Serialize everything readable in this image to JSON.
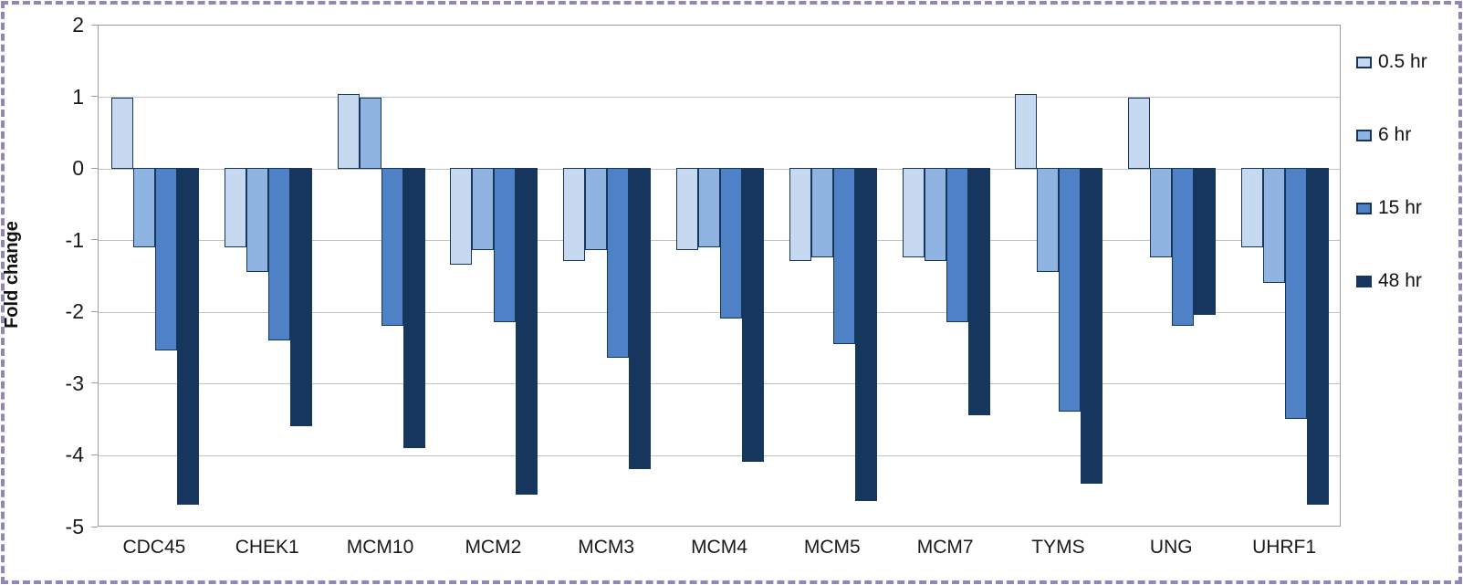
{
  "chart_data": {
    "type": "bar",
    "title": "",
    "xlabel": "",
    "ylabel": "Fold change",
    "ylim": [
      -5,
      2
    ],
    "ytick_labels": [
      "2",
      "1",
      "0",
      "-1",
      "-2",
      "-3",
      "-4",
      "-5"
    ],
    "grid": "horizontal",
    "legend_position": "right",
    "categories": [
      "CDC45",
      "CHEK1",
      "MCM10",
      "MCM2",
      "MCM3",
      "MCM4",
      "MCM5",
      "MCM7",
      "TYMS",
      "UNG",
      "UHRF1"
    ],
    "series": [
      {
        "name": "0.5 hr",
        "color": "#c6d9f1",
        "values": [
          1.0,
          -1.1,
          1.05,
          -1.35,
          -1.3,
          -1.15,
          -1.3,
          -1.25,
          1.05,
          1.0,
          -1.1
        ]
      },
      {
        "name": "6 hr",
        "color": "#8fb4e2",
        "values": [
          -1.1,
          -1.45,
          1.0,
          -1.15,
          -1.15,
          -1.1,
          -1.25,
          -1.3,
          -1.45,
          -1.25,
          -1.6
        ]
      },
      {
        "name": "15 hr",
        "color": "#4e81c6",
        "values": [
          -2.55,
          -2.4,
          -2.2,
          -2.15,
          -2.65,
          -2.1,
          -2.45,
          -2.15,
          -3.4,
          -2.2,
          -3.5
        ]
      },
      {
        "name": "48 hr",
        "color": "#17365d",
        "values": [
          -4.7,
          -3.6,
          -3.9,
          -4.55,
          -4.2,
          -4.1,
          -4.65,
          -3.45,
          -4.4,
          -2.05,
          -4.7
        ]
      }
    ],
    "colors": {
      "bar_border": "#16365c",
      "gridline": "#c3c3c3",
      "plot_border": "#9d9d9d",
      "text": "#1a1a1a",
      "frame_dash": "#8e88b8"
    }
  }
}
